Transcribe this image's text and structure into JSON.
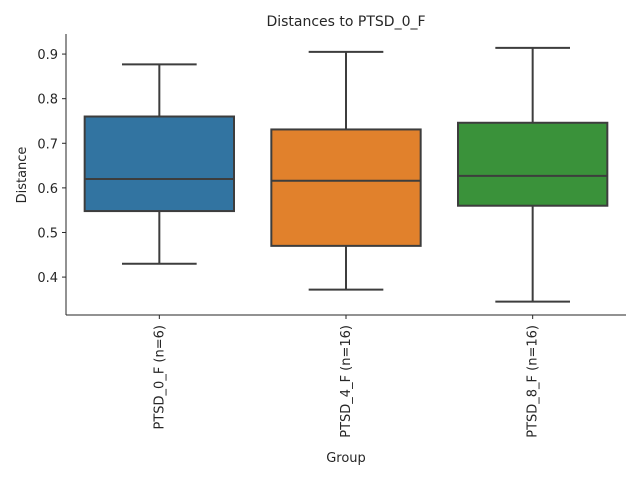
{
  "chart_data": {
    "type": "box",
    "title": "Distances to PTSD_0_F",
    "xlabel": "Group",
    "ylabel": "Distance",
    "ylim": [
      0.315,
      0.945
    ],
    "yticks": [
      0.4,
      0.5,
      0.6,
      0.7,
      0.8,
      0.9
    ],
    "ytick_labels": [
      "0.4",
      "0.5",
      "0.6",
      "0.7",
      "0.8",
      "0.9"
    ],
    "grid": false,
    "groups": [
      {
        "label": "PTSD_0_F (n=6)",
        "color": "#3274a1",
        "whisker_low": 0.43,
        "q1": 0.548,
        "median": 0.62,
        "q3": 0.76,
        "whisker_high": 0.877
      },
      {
        "label": "PTSD_4_F (n=16)",
        "color": "#e1812c",
        "whisker_low": 0.372,
        "q1": 0.47,
        "median": 0.616,
        "q3": 0.731,
        "whisker_high": 0.905
      },
      {
        "label": "PTSD_8_F (n=16)",
        "color": "#3a923a",
        "whisker_low": 0.345,
        "q1": 0.56,
        "median": 0.627,
        "q3": 0.746,
        "whisker_high": 0.914
      }
    ]
  }
}
